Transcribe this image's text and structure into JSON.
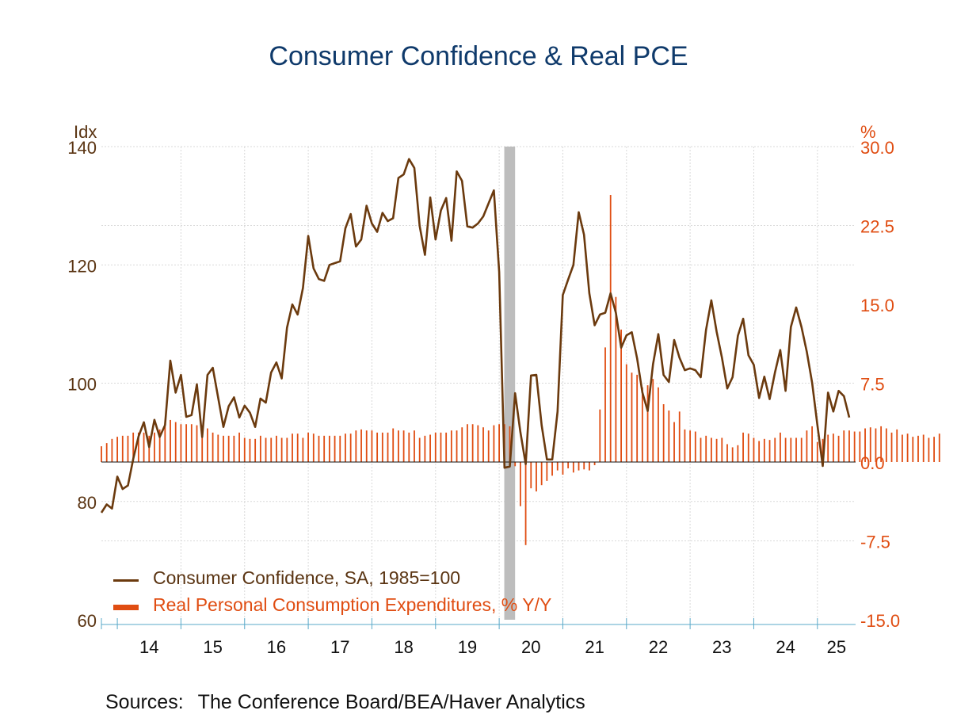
{
  "title": "Consumer Confidence & Real PCE",
  "sources": {
    "label": "Sources:",
    "text": "The Conference Board/BEA/Haver Analytics"
  },
  "colors": {
    "confidence": "#6b3a0e",
    "pce": "#e04d12",
    "title": "#0f3a6b",
    "recession": "#bdbdbd",
    "axis_tick": "#5aa9c9"
  },
  "chart_data": {
    "type": "line+bar",
    "title": "Consumer Confidence & Real PCE",
    "x_categories": [
      "14",
      "15",
      "16",
      "17",
      "18",
      "19",
      "20",
      "21",
      "22",
      "23",
      "24",
      "25"
    ],
    "x_start": 2013.75,
    "x_end": 2025.6,
    "left_axis": {
      "unit_label": "Idx",
      "ticks": [
        "140",
        "120",
        "100",
        "80",
        "60"
      ],
      "ylim": [
        60,
        140
      ]
    },
    "right_axis": {
      "unit_label": "%",
      "ticks": [
        "30.0",
        "22.5",
        "15.0",
        "7.5",
        "0.0",
        "-7.5",
        "-15.0"
      ],
      "ylim": [
        -15,
        30
      ]
    },
    "recession_shade": [
      2020.08,
      2020.25
    ],
    "legend": [
      "Consumer Confidence, SA, 1985=100",
      "Real Personal Consumption Expenditures, % Y/Y"
    ],
    "series": [
      {
        "name": "Consumer Confidence, SA, 1985=100",
        "type": "line",
        "axis": "left",
        "start": 2013.75,
        "step": 0.083333,
        "values": [
          78.1,
          79.5,
          78.8,
          84.2,
          82.1,
          82.7,
          87.2,
          91.0,
          93.4,
          89.2,
          93.8,
          90.9,
          92.9,
          103.8,
          98.4,
          101.4,
          94.3,
          94.6,
          99.8,
          90.9,
          101.4,
          102.6,
          97.6,
          92.6,
          96.1,
          97.6,
          94.2,
          96.2,
          95.0,
          92.6,
          97.4,
          96.7,
          101.8,
          103.5,
          100.8,
          109.4,
          113.3,
          111.6,
          116.1,
          124.9,
          119.4,
          117.6,
          117.3,
          120.0,
          120.3,
          120.6,
          126.2,
          128.6,
          123.1,
          124.3,
          130.0,
          127.0,
          125.6,
          128.8,
          127.4,
          127.9,
          134.7,
          135.3,
          137.9,
          136.4,
          126.6,
          121.7,
          131.4,
          124.3,
          129.2,
          131.3,
          124.1,
          135.8,
          134.2,
          126.5,
          126.3,
          127.0,
          128.2,
          130.4,
          132.6,
          118.8,
          85.7,
          85.9,
          98.3,
          91.7,
          86.3,
          101.3,
          101.4,
          92.9,
          87.1,
          87.1,
          95.2,
          114.9,
          117.5,
          120.0,
          128.9,
          125.1,
          115.2,
          109.8,
          111.6,
          111.9,
          115.2,
          111.9,
          106.0,
          108.1,
          108.6,
          104.2,
          98.4,
          95.3,
          103.2,
          108.3,
          101.4,
          100.2,
          107.3,
          104.3,
          102.2,
          102.5,
          102.2,
          101.0,
          109.0,
          114.0,
          108.7,
          104.3,
          99.1,
          101.0,
          108.0,
          110.9,
          104.7,
          103.1,
          97.5,
          101.1,
          97.3,
          101.8,
          105.6,
          98.7,
          109.5,
          112.8,
          109.5,
          105.3,
          100.1,
          92.9,
          86.0,
          98.4,
          95.2,
          98.7,
          97.8,
          94.2
        ]
      },
      {
        "name": "Real Personal Consumption Expenditures, % Y/Y",
        "type": "bar",
        "axis": "right",
        "start": 2013.75,
        "step": 0.083333,
        "values": [
          1.5,
          1.8,
          2.2,
          2.4,
          2.5,
          2.5,
          2.8,
          2.8,
          2.8,
          2.5,
          2.8,
          3.1,
          3.4,
          4.0,
          3.8,
          3.6,
          3.6,
          3.6,
          3.5,
          3.0,
          3.2,
          2.8,
          2.6,
          2.5,
          2.5,
          2.5,
          2.8,
          2.3,
          2.2,
          2.2,
          2.5,
          2.3,
          2.3,
          2.5,
          2.3,
          2.3,
          2.7,
          2.7,
          2.3,
          2.8,
          2.7,
          2.5,
          2.5,
          2.5,
          2.5,
          2.5,
          2.7,
          2.7,
          3.0,
          3.1,
          3.0,
          3.0,
          2.8,
          2.8,
          2.8,
          3.2,
          3.0,
          3.0,
          2.8,
          3.0,
          2.3,
          2.5,
          2.6,
          2.8,
          2.8,
          2.8,
          3.0,
          3.0,
          3.3,
          3.6,
          3.6,
          3.5,
          3.3,
          3.0,
          3.5,
          3.6,
          3.6,
          3.4,
          -0.4,
          -4.2,
          -7.9,
          -2.5,
          -2.8,
          -2.2,
          -1.8,
          -1.3,
          -0.8,
          -1.2,
          -0.6,
          -1.0,
          -0.8,
          -0.7,
          -0.8,
          -0.3,
          5.0,
          10.9,
          25.4,
          15.7,
          12.6,
          9.3,
          8.5,
          8.3,
          7.1,
          7.3,
          7.9,
          7.1,
          5.5,
          4.9,
          3.8,
          4.8,
          3.1,
          3.0,
          2.9,
          2.3,
          2.5,
          2.3,
          2.2,
          2.3,
          1.7,
          1.4,
          1.6,
          2.8,
          2.7,
          2.3,
          2.0,
          2.2,
          2.1,
          2.3,
          2.8,
          2.3,
          2.3,
          2.3,
          2.3,
          3.0,
          3.4,
          1.9,
          2.2,
          2.6,
          2.7,
          2.5,
          3.0,
          3.0,
          2.9,
          2.9,
          3.2,
          3.3,
          3.2,
          3.4,
          3.2,
          2.8,
          3.1,
          2.6,
          2.7,
          2.4,
          2.5,
          2.6,
          2.3,
          2.4,
          2.7
        ]
      }
    ]
  }
}
